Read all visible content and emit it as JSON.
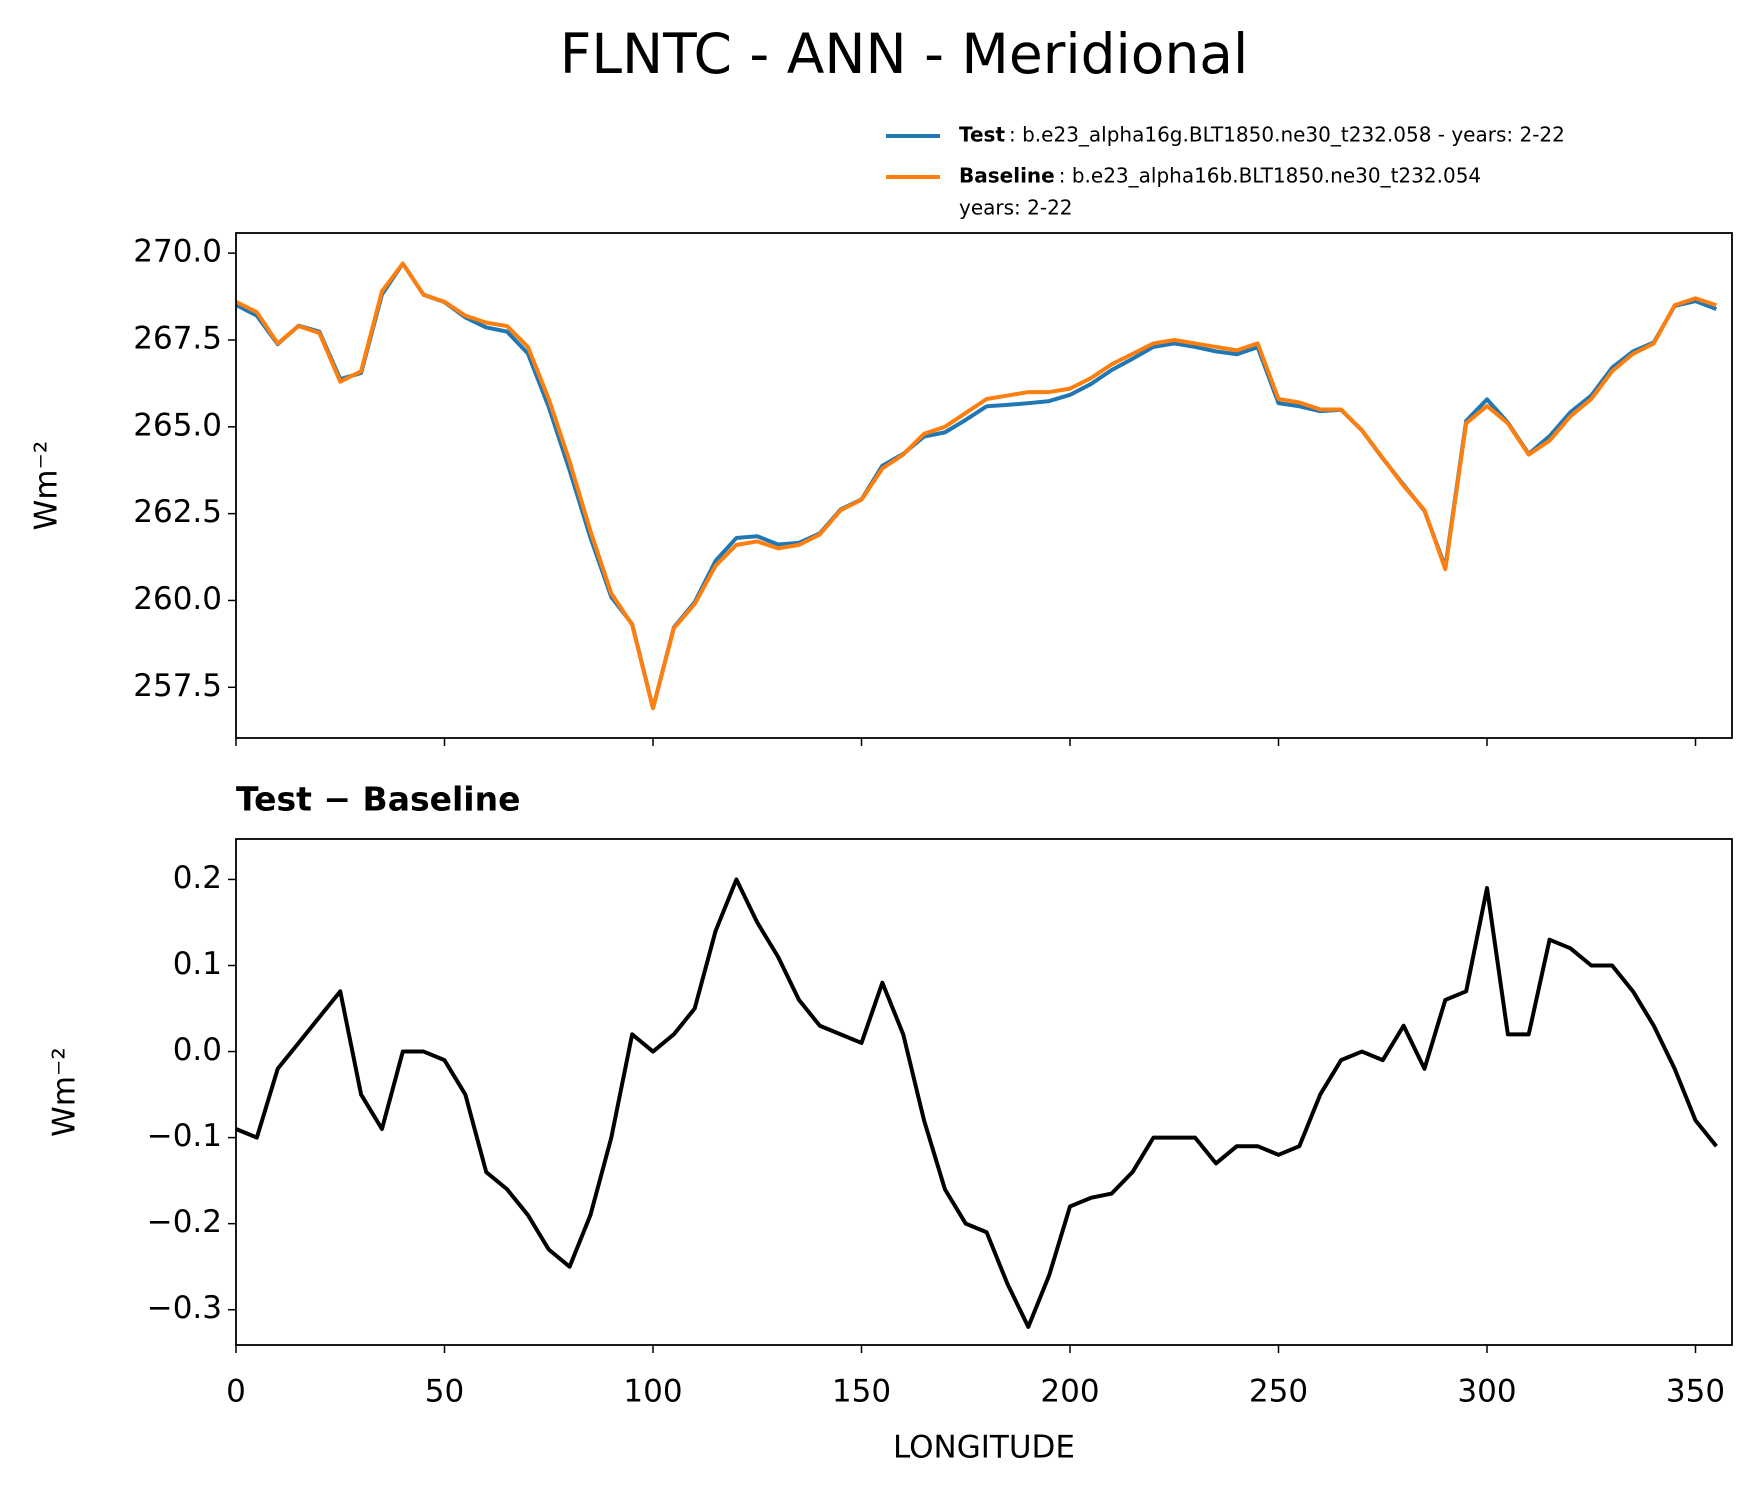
{
  "chart_data": [
    {
      "type": "line",
      "title": "FLNTC - ANN - Meridional",
      "ylabel": "Wm⁻²",
      "x": [
        0,
        5,
        10,
        15,
        20,
        25,
        30,
        35,
        40,
        45,
        50,
        55,
        60,
        65,
        70,
        75,
        80,
        85,
        90,
        95,
        100,
        105,
        110,
        115,
        120,
        125,
        130,
        135,
        140,
        145,
        150,
        155,
        160,
        165,
        170,
        175,
        180,
        185,
        190,
        195,
        200,
        205,
        210,
        215,
        220,
        225,
        230,
        235,
        240,
        245,
        250,
        255,
        260,
        265,
        270,
        275,
        280,
        285,
        290,
        295,
        300,
        305,
        310,
        315,
        320,
        325,
        330,
        335,
        340,
        345,
        350,
        355
      ],
      "series": [
        {
          "name": "Test",
          "label": [
            ": b.e23_alpha16g.BLT1850.ne30_t232.058 - years: 2-22"
          ],
          "color": "#1f77b4",
          "values": [
            268.51,
            268.2,
            267.38,
            267.91,
            267.74,
            266.37,
            266.55,
            268.81,
            269.7,
            268.8,
            268.59,
            268.15,
            267.86,
            267.74,
            267.11,
            265.57,
            263.75,
            261.81,
            260.1,
            259.32,
            256.9,
            259.22,
            259.95,
            261.14,
            261.8,
            261.85,
            261.61,
            261.66,
            261.93,
            262.62,
            262.91,
            263.88,
            264.22,
            264.72,
            264.84,
            265.2,
            265.59,
            265.63,
            265.68,
            265.74,
            265.92,
            266.23,
            266.635,
            266.96,
            267.3,
            267.4,
            267.3,
            267.17,
            267.09,
            267.29,
            265.68,
            265.59,
            265.45,
            265.49,
            264.9,
            264.09,
            263.33,
            262.58,
            260.96,
            265.17,
            265.79,
            265.12,
            264.22,
            264.73,
            265.42,
            265.9,
            266.7,
            267.17,
            267.43,
            268.48,
            268.62,
            268.39
          ]
        },
        {
          "name": "Baseline",
          "label": [
            ": b.e23_alpha16b.BLT1850.ne30_t232.054",
            "years: 2-22"
          ],
          "color": "#ff7f0e",
          "values": [
            268.6,
            268.3,
            267.4,
            267.9,
            267.7,
            266.3,
            266.6,
            268.9,
            269.7,
            268.8,
            268.6,
            268.2,
            268.0,
            267.9,
            267.3,
            265.8,
            264.0,
            262.0,
            260.2,
            259.3,
            256.9,
            259.2,
            259.9,
            261.0,
            261.6,
            261.7,
            261.5,
            261.6,
            261.9,
            262.6,
            262.9,
            263.8,
            264.2,
            264.8,
            265.0,
            265.4,
            265.8,
            265.9,
            266.0,
            266.0,
            266.1,
            266.4,
            266.8,
            267.1,
            267.4,
            267.5,
            267.4,
            267.3,
            267.2,
            267.4,
            265.8,
            265.7,
            265.5,
            265.5,
            264.9,
            264.1,
            263.3,
            262.6,
            260.9,
            265.1,
            265.6,
            265.1,
            264.2,
            264.6,
            265.3,
            265.8,
            266.6,
            267.1,
            267.4,
            268.5,
            268.7,
            268.5
          ]
        }
      ],
      "xlim": [
        0,
        358.75
      ],
      "xticks": [
        0,
        50,
        100,
        150,
        200,
        250,
        300,
        350
      ],
      "ylim": [
        256.04,
        270.58
      ],
      "yticks": [
        {
          "value": 257.5,
          "label": "257.5"
        },
        {
          "value": 260,
          "label": "260.0"
        },
        {
          "value": 262.5,
          "label": "262.5"
        },
        {
          "value": 265,
          "label": "265.0"
        },
        {
          "value": 267.5,
          "label": "267.5"
        },
        {
          "value": 270,
          "label": "270.0"
        }
      ]
    },
    {
      "type": "line",
      "title": "Test − Baseline",
      "ylabel": "Wm⁻²",
      "xlabel": "LONGITUDE",
      "x": [
        0,
        5,
        10,
        15,
        20,
        25,
        30,
        35,
        40,
        45,
        50,
        55,
        60,
        65,
        70,
        75,
        80,
        85,
        90,
        95,
        100,
        105,
        110,
        115,
        120,
        125,
        130,
        135,
        140,
        145,
        150,
        155,
        160,
        165,
        170,
        175,
        180,
        185,
        190,
        195,
        200,
        205,
        210,
        215,
        220,
        225,
        230,
        235,
        240,
        245,
        250,
        255,
        260,
        265,
        270,
        275,
        280,
        285,
        290,
        295,
        300,
        305,
        310,
        315,
        320,
        325,
        330,
        335,
        340,
        345,
        350,
        355
      ],
      "series": [
        {
          "name": null,
          "color": "#000000",
          "values": [
            -0.09,
            -0.1,
            -0.02,
            0.01,
            0.04,
            0.07,
            -0.05,
            -0.09,
            0.0,
            0.0,
            -0.01,
            -0.05,
            -0.14,
            -0.16,
            -0.19,
            -0.23,
            -0.25,
            -0.19,
            -0.1,
            0.02,
            0.0,
            0.02,
            0.05,
            0.14,
            0.2,
            0.15,
            0.11,
            0.06,
            0.03,
            0.02,
            0.01,
            0.08,
            0.02,
            -0.08,
            -0.16,
            -0.2,
            -0.21,
            -0.27,
            -0.32,
            -0.26,
            -0.18,
            -0.17,
            -0.165,
            -0.14,
            -0.1,
            -0.1,
            -0.1,
            -0.13,
            -0.11,
            -0.11,
            -0.12,
            -0.11,
            -0.05,
            -0.01,
            0.0,
            -0.01,
            0.03,
            -0.02,
            0.06,
            0.07,
            0.19,
            0.02,
            0.02,
            0.13,
            0.12,
            0.1,
            0.1,
            0.07,
            0.03,
            -0.02,
            -0.08,
            -0.11
          ]
        }
      ],
      "xlim": [
        0,
        358.75
      ],
      "xticks": [
        0,
        50,
        100,
        150,
        200,
        250,
        300,
        350
      ],
      "ylim": [
        -0.341,
        0.247
      ],
      "yticks": [
        {
          "value": -0.3,
          "label": "−0.3"
        },
        {
          "value": -0.2,
          "label": "−0.2"
        },
        {
          "value": -0.1,
          "label": "−0.1"
        },
        {
          "value": 0,
          "label": "0.0"
        },
        0.1,
        0.2
      ]
    }
  ]
}
